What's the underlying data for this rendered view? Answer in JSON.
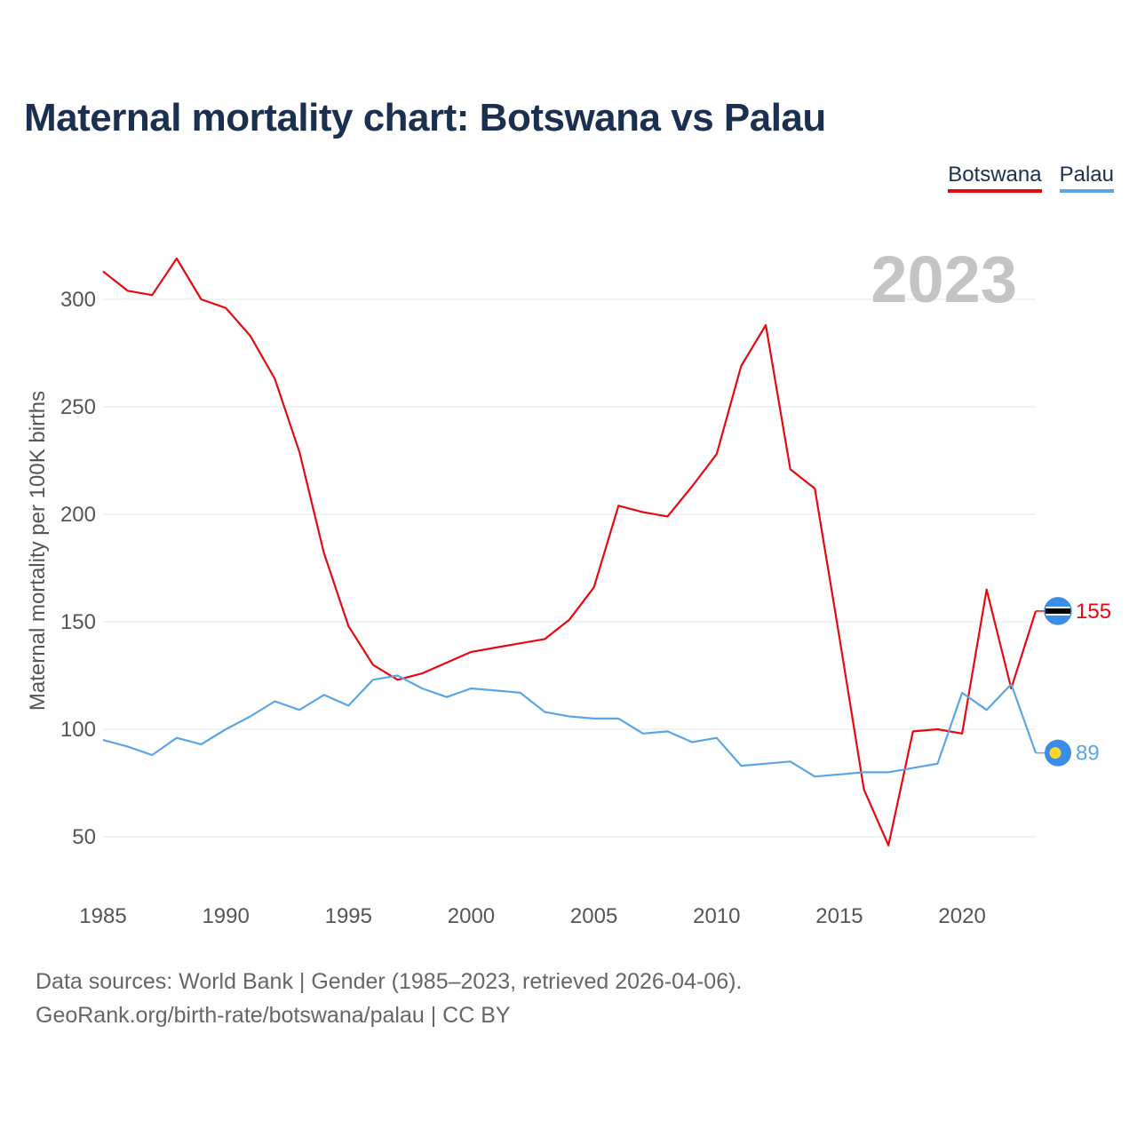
{
  "title": "Maternal mortality chart: Botswana vs Palau",
  "legend": [
    {
      "name": "Botswana",
      "color": "#e8080f"
    },
    {
      "name": "Palau",
      "color": "#5aa5e6"
    }
  ],
  "current_year": "2023",
  "source_line1": "Data sources: World Bank | Gender (1985–2023, retrieved 2026-04-06).",
  "source_line2": "GeoRank.org/birth-rate/botswana/palau | CC BY",
  "chart_data": {
    "type": "line",
    "title": "Maternal mortality chart: Botswana vs Palau",
    "xlabel": "",
    "ylabel": "Maternal mortality per 100K births",
    "xlim": [
      1985,
      2023
    ],
    "ylim": [
      30,
      330
    ],
    "x_ticks": [
      1985,
      1990,
      1995,
      2000,
      2005,
      2010,
      2015,
      2020
    ],
    "y_ticks": [
      50,
      100,
      150,
      200,
      250,
      300
    ],
    "grid": "horizontal",
    "legend_position": "top-right",
    "x": [
      1985,
      1986,
      1987,
      1988,
      1989,
      1990,
      1991,
      1992,
      1993,
      1994,
      1995,
      1996,
      1997,
      1998,
      1999,
      2000,
      2001,
      2002,
      2003,
      2004,
      2005,
      2006,
      2007,
      2008,
      2009,
      2010,
      2011,
      2012,
      2013,
      2014,
      2015,
      2016,
      2017,
      2018,
      2019,
      2020,
      2021,
      2022,
      2023
    ],
    "series": [
      {
        "name": "Botswana",
        "color": "#e8080f",
        "end_label": "155",
        "values": [
          313,
          304,
          302,
          319,
          300,
          296,
          283,
          263,
          229,
          182,
          148,
          130,
          123,
          126,
          131,
          136,
          138,
          140,
          142,
          151,
          166,
          204,
          201,
          199,
          213,
          228,
          269,
          288,
          221,
          212,
          143,
          72,
          46,
          99,
          100,
          98,
          165,
          119,
          155
        ]
      },
      {
        "name": "Palau",
        "color": "#5aa5e6",
        "end_label": "89",
        "values": [
          95,
          92,
          88,
          96,
          93,
          100,
          106,
          113,
          109,
          116,
          111,
          123,
          125,
          119,
          115,
          119,
          118,
          117,
          108,
          106,
          105,
          105,
          98,
          99,
          94,
          96,
          83,
          84,
          85,
          78,
          79,
          80,
          80,
          82,
          84,
          117,
          109,
          121,
          89
        ]
      }
    ]
  }
}
